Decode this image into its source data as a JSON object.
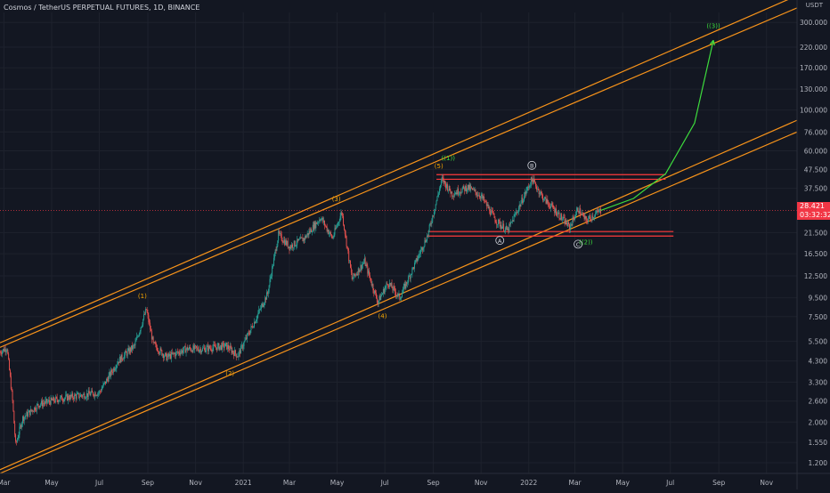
{
  "header": {
    "symbol_title": "Cosmos / TetherUS PERPETUAL FUTURES, 1D, BINANCE",
    "axis_currency": "USDT"
  },
  "last_price": {
    "value": "28.421",
    "countdown": "03:32:32",
    "color": "#f23645"
  },
  "colors": {
    "background": "#131722",
    "grid": "#1e222d",
    "candle_up": "#26a69a",
    "candle_down": "#ef5350",
    "channel": "#f7931a",
    "wave_major": "#3ddc3d",
    "wave_minor": "#f7a600",
    "range_box": "#ff3b3b",
    "text": "#b2b5be"
  },
  "chart_data": {
    "type": "candlestick",
    "title": "Cosmos / TetherUS PERPETUAL FUTURES, 1D, BINANCE",
    "y_scale": "log",
    "ylim": [
      1.05,
      340
    ],
    "x_range": [
      "2020-02-25",
      "2022-12-10"
    ],
    "grid": true,
    "y_ticks": [
      {
        "v": 300,
        "label": "300.000"
      },
      {
        "v": 220,
        "label": "220.000"
      },
      {
        "v": 170,
        "label": "170.000"
      },
      {
        "v": 130,
        "label": "130.000"
      },
      {
        "v": 100,
        "label": "100.000"
      },
      {
        "v": 76,
        "label": "76.000"
      },
      {
        "v": 60,
        "label": "60.000"
      },
      {
        "v": 47.5,
        "label": "47.500"
      },
      {
        "v": 37.5,
        "label": "37.500"
      },
      {
        "v": 21.5,
        "label": "21.500"
      },
      {
        "v": 16.5,
        "label": "16.500"
      },
      {
        "v": 12.5,
        "label": "12.500"
      },
      {
        "v": 9.5,
        "label": "9.500"
      },
      {
        "v": 7.5,
        "label": "7.500"
      },
      {
        "v": 5.5,
        "label": "5.500"
      },
      {
        "v": 4.3,
        "label": "4.300"
      },
      {
        "v": 3.3,
        "label": "3.300"
      },
      {
        "v": 2.6,
        "label": "2.600"
      },
      {
        "v": 2.0,
        "label": "2.000"
      },
      {
        "v": 1.55,
        "label": "1.550"
      },
      {
        "v": 1.2,
        "label": "1.200"
      }
    ],
    "x_ticks": [
      {
        "date": "2020-03-01",
        "label": "Mar"
      },
      {
        "date": "2020-05-01",
        "label": "May"
      },
      {
        "date": "2020-07-01",
        "label": "Jul"
      },
      {
        "date": "2020-09-01",
        "label": "Sep"
      },
      {
        "date": "2020-11-01",
        "label": "Nov"
      },
      {
        "date": "2021-01-01",
        "label": "2021"
      },
      {
        "date": "2021-03-01",
        "label": "Mar"
      },
      {
        "date": "2021-05-01",
        "label": "May"
      },
      {
        "date": "2021-07-01",
        "label": "Jul"
      },
      {
        "date": "2021-09-01",
        "label": "Sep"
      },
      {
        "date": "2021-11-01",
        "label": "Nov"
      },
      {
        "date": "2022-01-01",
        "label": "2022"
      },
      {
        "date": "2022-03-01",
        "label": "Mar"
      },
      {
        "date": "2022-05-01",
        "label": "May"
      },
      {
        "date": "2022-07-01",
        "label": "Jul"
      },
      {
        "date": "2022-09-01",
        "label": "Sep"
      },
      {
        "date": "2022-11-01",
        "label": "Nov"
      }
    ],
    "price_path": [
      {
        "date": "2020-02-25",
        "price": 4.8
      },
      {
        "date": "2020-03-05",
        "price": 5.1
      },
      {
        "date": "2020-03-12",
        "price": 2.6
      },
      {
        "date": "2020-03-16",
        "price": 1.5
      },
      {
        "date": "2020-03-25",
        "price": 2.1
      },
      {
        "date": "2020-04-15",
        "price": 2.5
      },
      {
        "date": "2020-05-15",
        "price": 2.7
      },
      {
        "date": "2020-06-10",
        "price": 2.8
      },
      {
        "date": "2020-07-01",
        "price": 2.9
      },
      {
        "date": "2020-07-25",
        "price": 4.3
      },
      {
        "date": "2020-08-15",
        "price": 5.2
      },
      {
        "date": "2020-08-30",
        "price": 8.2
      },
      {
        "date": "2020-09-08",
        "price": 5.3
      },
      {
        "date": "2020-09-25",
        "price": 4.5
      },
      {
        "date": "2020-10-20",
        "price": 5.0
      },
      {
        "date": "2020-11-10",
        "price": 5.0
      },
      {
        "date": "2020-12-10",
        "price": 5.2
      },
      {
        "date": "2020-12-25",
        "price": 4.6
      },
      {
        "date": "2021-01-15",
        "price": 7.0
      },
      {
        "date": "2021-02-01",
        "price": 10.0
      },
      {
        "date": "2021-02-15",
        "price": 21.0
      },
      {
        "date": "2021-03-01",
        "price": 18.0
      },
      {
        "date": "2021-03-20",
        "price": 20.0
      },
      {
        "date": "2021-04-10",
        "price": 26.0
      },
      {
        "date": "2021-04-25",
        "price": 20.0
      },
      {
        "date": "2021-05-07",
        "price": 28.0
      },
      {
        "date": "2021-05-20",
        "price": 12.0
      },
      {
        "date": "2021-06-05",
        "price": 15.0
      },
      {
        "date": "2021-06-22",
        "price": 9.0
      },
      {
        "date": "2021-07-05",
        "price": 11.5
      },
      {
        "date": "2021-07-20",
        "price": 9.5
      },
      {
        "date": "2021-08-10",
        "price": 15.0
      },
      {
        "date": "2021-08-25",
        "price": 21.0
      },
      {
        "date": "2021-09-12",
        "price": 42.0
      },
      {
        "date": "2021-09-25",
        "price": 35.0
      },
      {
        "date": "2021-10-15",
        "price": 38.0
      },
      {
        "date": "2021-11-01",
        "price": 34.0
      },
      {
        "date": "2021-11-20",
        "price": 25.0
      },
      {
        "date": "2021-12-05",
        "price": 22.0
      },
      {
        "date": "2021-12-20",
        "price": 30.0
      },
      {
        "date": "2022-01-05",
        "price": 42.0
      },
      {
        "date": "2022-01-20",
        "price": 33.0
      },
      {
        "date": "2022-02-05",
        "price": 28.0
      },
      {
        "date": "2022-02-22",
        "price": 23.0
      },
      {
        "date": "2022-03-05",
        "price": 29.0
      },
      {
        "date": "2022-03-15",
        "price": 25.0
      },
      {
        "date": "2022-04-03",
        "price": 28.4
      }
    ],
    "projection": [
      {
        "date": "2022-04-03",
        "price": 28.4
      },
      {
        "date": "2022-05-15",
        "price": 33
      },
      {
        "date": "2022-06-25",
        "price": 45
      },
      {
        "date": "2022-08-01",
        "price": 85
      },
      {
        "date": "2022-08-25",
        "price": 240
      }
    ],
    "channel_lines": [
      {
        "from": {
          "date": "2020-02-25",
          "price": 5.1
        },
        "to": {
          "date": "2022-12-10",
          "price": 360
        }
      },
      {
        "from": {
          "date": "2020-02-25",
          "price": 5.4
        },
        "to": {
          "date": "2022-12-10",
          "price": 420
        }
      },
      {
        "from": {
          "date": "2020-02-25",
          "price": 1.05
        },
        "to": {
          "date": "2022-12-10",
          "price": 76
        }
      },
      {
        "from": {
          "date": "2020-02-25",
          "price": 1.1
        },
        "to": {
          "date": "2022-12-10",
          "price": 88
        }
      }
    ],
    "range_lines": [
      {
        "from": {
          "date": "2021-09-05",
          "price": 44.5
        },
        "to": {
          "date": "2022-06-25",
          "price": 44.5
        }
      },
      {
        "from": {
          "date": "2021-09-05",
          "price": 42.0
        },
        "to": {
          "date": "2022-06-25",
          "price": 42.0
        }
      },
      {
        "from": {
          "date": "2021-08-25",
          "price": 21.8
        },
        "to": {
          "date": "2022-07-05",
          "price": 21.8
        }
      },
      {
        "from": {
          "date": "2021-08-25",
          "price": 20.6
        },
        "to": {
          "date": "2022-07-05",
          "price": 20.6
        }
      }
    ],
    "annotations": [
      {
        "label": "(1)",
        "date": "2020-08-25",
        "price": 9.8,
        "kind": "minor"
      },
      {
        "label": "(2)",
        "date": "2020-12-15",
        "price": 3.7,
        "kind": "minor"
      },
      {
        "label": "(3)",
        "date": "2021-04-30",
        "price": 33,
        "kind": "minor"
      },
      {
        "label": "(4)",
        "date": "2021-06-28",
        "price": 7.6,
        "kind": "minor"
      },
      {
        "label": "(5)",
        "date": "2021-09-08",
        "price": 50,
        "kind": "minor"
      },
      {
        "label": "((1))",
        "date": "2021-09-20",
        "price": 55,
        "kind": "major"
      },
      {
        "label": "((2))",
        "date": "2022-03-15",
        "price": 19.2,
        "kind": "major"
      },
      {
        "label": "((3))",
        "date": "2022-08-25",
        "price": 290,
        "kind": "major"
      },
      {
        "label": "A",
        "date": "2021-11-25",
        "price": 19.5,
        "kind": "circle"
      },
      {
        "label": "B",
        "date": "2022-01-05",
        "price": 50,
        "kind": "circle"
      },
      {
        "label": "C",
        "date": "2022-03-05",
        "price": 18.6,
        "kind": "circle"
      }
    ]
  }
}
